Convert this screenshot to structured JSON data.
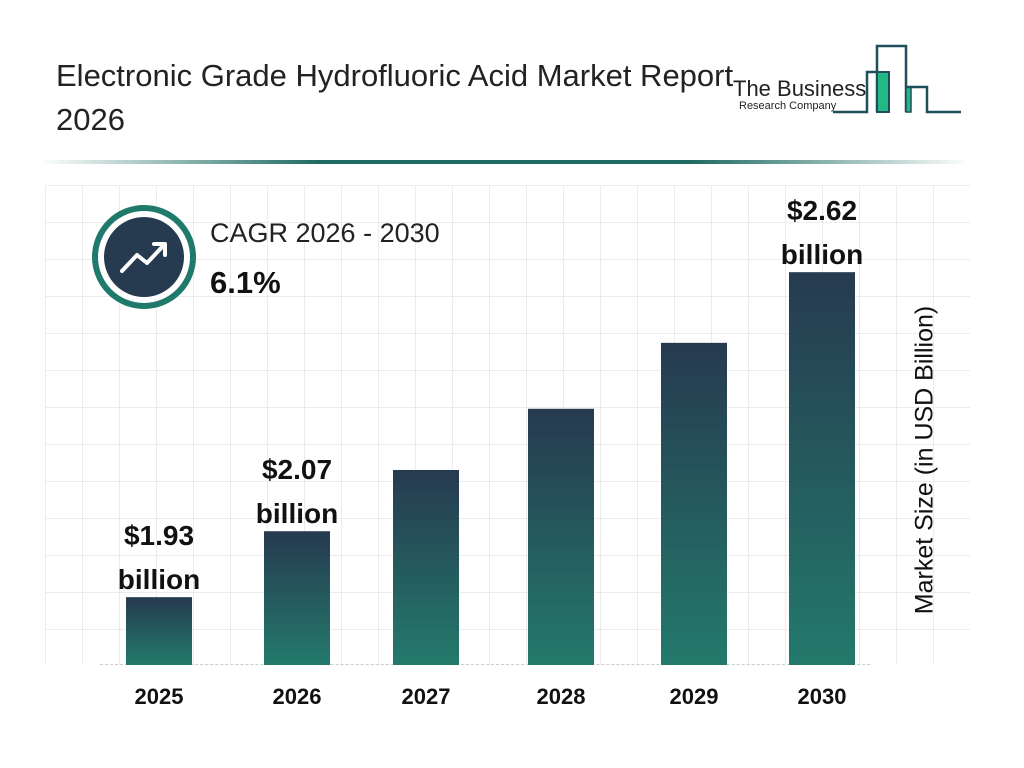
{
  "title": "Electronic Grade Hydrofluoric Acid Market Report 2026",
  "logo": {
    "line1": "The Business",
    "line2": "Research Company"
  },
  "cagr": {
    "label": "CAGR 2026 - 2030",
    "value": "6.1%",
    "icon": "trend-up-icon"
  },
  "colors": {
    "bar_top": "#263a50",
    "bar_bottom": "#237a6b",
    "accent": "#1f7a6c"
  },
  "chart_data": {
    "type": "bar",
    "categories": [
      "2025",
      "2026",
      "2027",
      "2028",
      "2029",
      "2030"
    ],
    "values": [
      1.93,
      2.07,
      2.2,
      2.33,
      2.47,
      2.62
    ],
    "data_labels": [
      "$1.93 billion",
      "$2.07 billion",
      "",
      "",
      "",
      "$2.62 billion"
    ],
    "ylabel": "Market Size (in USD Billion)",
    "xlabel": "",
    "grid": true
  }
}
